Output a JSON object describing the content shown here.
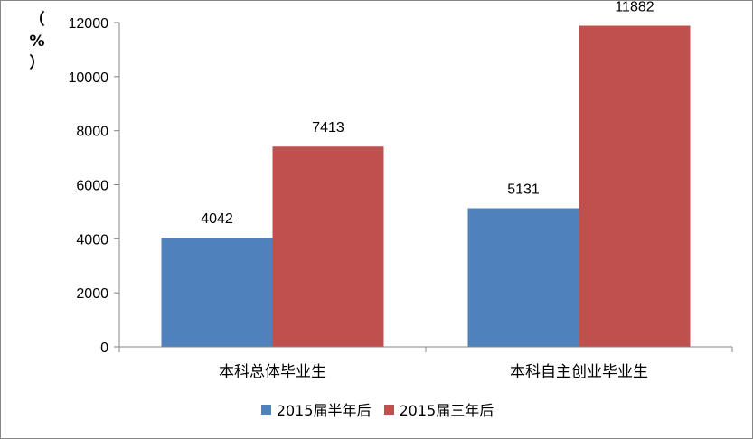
{
  "chart_data": {
    "type": "bar",
    "categories": [
      "本科总体毕业生",
      "本科自主创业毕业生"
    ],
    "series": [
      {
        "name": "2015届半年后",
        "values": [
          4042,
          5131
        ],
        "color": "#4F81BD"
      },
      {
        "name": "2015届三年后",
        "values": [
          7413,
          11882
        ],
        "color": "#C0504D"
      }
    ],
    "ylabel_chars": [
      "（",
      "%",
      "）"
    ],
    "ylim": [
      0,
      12000
    ],
    "yticks": [
      0,
      2000,
      4000,
      6000,
      8000,
      10000,
      12000
    ],
    "grid": false,
    "legend_position": "bottom"
  }
}
